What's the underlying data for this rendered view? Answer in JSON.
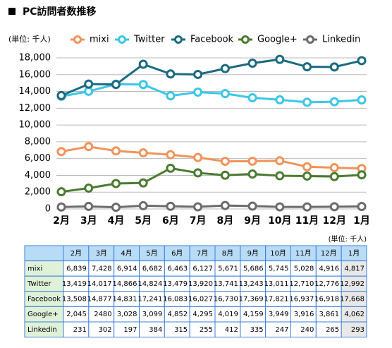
{
  "chart_data": {
    "type": "line",
    "title": "PC訪問者数推移",
    "unit_note": "(単位: 千人)",
    "categories": [
      "2月",
      "3月",
      "4月",
      "5月",
      "6月",
      "7月",
      "8月",
      "9月",
      "10月",
      "11月",
      "12月",
      "1月"
    ],
    "series": [
      {
        "name": "mixi",
        "color": "#f0935a",
        "values": [
          6839,
          7428,
          6914,
          6682,
          6463,
          6127,
          5671,
          5686,
          5745,
          5028,
          4916,
          4817
        ],
        "value_labels": [
          "6,839",
          "7,428",
          "6,914",
          "6,682",
          "6,463",
          "6,127",
          "5,671",
          "5,686",
          "5,745",
          "5,028",
          "4,916",
          "4,817"
        ]
      },
      {
        "name": "Twitter",
        "color": "#3cc6e6",
        "values": [
          13419,
          14017,
          14866,
          14824,
          13479,
          13920,
          13741,
          13243,
          13011,
          12710,
          12776,
          12992
        ],
        "value_labels": [
          "13,419",
          "14,017",
          "14,866",
          "14,824",
          "13,479",
          "13,920",
          "13,741",
          "13,243",
          "13,011",
          "12,710",
          "12,776",
          "12,992"
        ]
      },
      {
        "name": "Facebook",
        "color": "#1a6a80",
        "values": [
          13508,
          14877,
          14831,
          17241,
          16083,
          16027,
          16730,
          17369,
          17821,
          16937,
          16918,
          17668
        ],
        "value_labels": [
          "13,508",
          "14,877",
          "14,831",
          "17,241",
          "16,083",
          "16,027",
          "16,730",
          "17,369",
          "17,821",
          "16,937",
          "16,918",
          "17,668"
        ]
      },
      {
        "name": "Google+",
        "color": "#4b7a32",
        "values": [
          2045,
          2480,
          3028,
          3099,
          4852,
          4295,
          4019,
          4159,
          3949,
          3916,
          3861,
          4062
        ],
        "value_labels": [
          "2,045",
          "2480",
          "3,028",
          "3,099",
          "4,852",
          "4,295",
          "4,019",
          "4,159",
          "3,949",
          "3,916",
          "3,861",
          "4,062"
        ]
      },
      {
        "name": "Linkedin",
        "color": "#6b6b6b",
        "values": [
          231,
          302,
          197,
          384,
          315,
          255,
          412,
          335,
          247,
          240,
          265,
          293
        ]
      }
    ],
    "ylim": [
      0,
      18000
    ],
    "yticks": [
      0,
      {
        "value": 2000,
        "label": "2,000"
      },
      {
        "value": 4000,
        "label": "4,000"
      },
      {
        "value": 6000,
        "label": "6,000"
      },
      {
        "value": 8000,
        "label": "8,000"
      },
      {
        "value": 10000,
        "label": "10,000"
      },
      {
        "value": 12000,
        "label": "12,000"
      },
      {
        "value": 14000,
        "label": "14,000"
      },
      {
        "value": 16000,
        "label": "16,000"
      },
      {
        "value": 18000,
        "label": "18,000"
      }
    ],
    "grid": true
  }
}
